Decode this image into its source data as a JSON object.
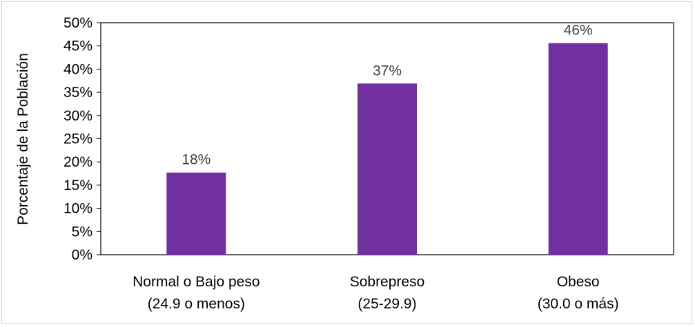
{
  "chart_data": {
    "type": "bar",
    "title": "",
    "xlabel": "",
    "ylabel": "Porcentaje de la Población",
    "categories": [
      [
        "Normal o Bajo peso",
        "(24.9 o menos)"
      ],
      [
        "Sobrepreso",
        "(25-29.9)"
      ],
      [
        "Obeso",
        "(30.0 o más)"
      ]
    ],
    "values": [
      17.7,
      36.9,
      45.6
    ],
    "data_labels": [
      "18%",
      "37%",
      "46%"
    ],
    "ylim": [
      0,
      50
    ],
    "yticks": [
      0,
      5,
      10,
      15,
      20,
      25,
      30,
      35,
      40,
      45,
      50
    ],
    "ytick_labels": [
      "0%",
      "5%",
      "10%",
      "15%",
      "20%",
      "25%",
      "30%",
      "35%",
      "40%",
      "45%",
      "50%"
    ],
    "grid": false,
    "bar_color": "#7030A0",
    "legend": "none"
  }
}
